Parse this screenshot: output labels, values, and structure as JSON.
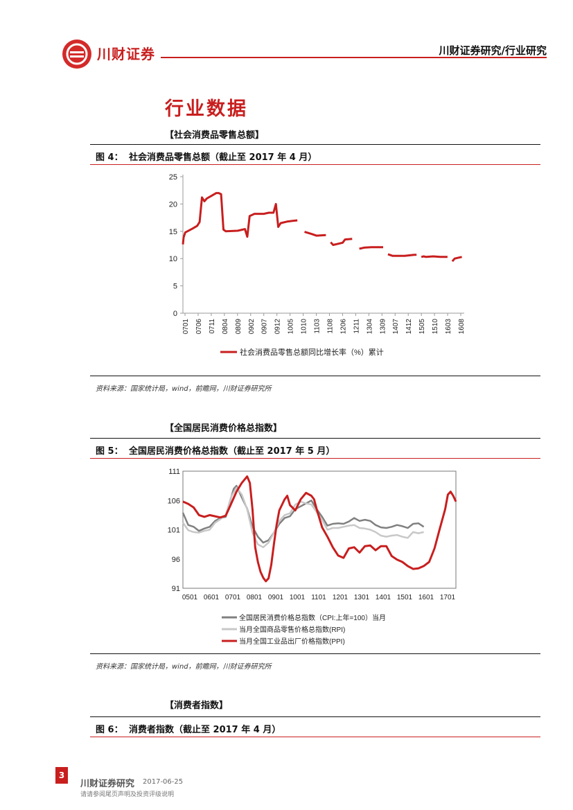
{
  "header": {
    "brand": "川财证券",
    "right_title": "川财证券研究/行业研究"
  },
  "section_title": "行业数据",
  "sections": [
    {
      "subheading": "【社会消费品零售总额】",
      "fig_num": "图 4：",
      "fig_title": "社会消费品零售总额（截止至 2017 年 4 月）",
      "source": "资料来源：国家统计局，wind，前瞻网，川财证券研究所"
    },
    {
      "subheading": "【全国居民消费价格总指数】",
      "fig_num": "图 5：",
      "fig_title": "全国居民消费价格总指数（截止至 2017 年 5 月）",
      "source": "资料来源：国家统计局，wind，前瞻网，川财证券研究所"
    },
    {
      "subheading": "【消费者指数】",
      "fig_num": "图 6：",
      "fig_title": "消费者指数（截止至 2017 年 4 月）"
    }
  ],
  "footer": {
    "page": "3",
    "brand": "川财证券研究",
    "date": "2017-06-25",
    "disclaimer": "请请参阅尾页声明及投资评级说明"
  },
  "chart_data": [
    {
      "type": "line",
      "ylim": [
        0,
        25
      ],
      "yticks": [
        "0",
        "5",
        "10",
        "15",
        "20",
        "25"
      ],
      "xtick_labels": [
        "0701",
        "0706",
        "0711",
        "0804",
        "0809",
        "0902",
        "0907",
        "0912",
        "1005",
        "1010",
        "1103",
        "1108",
        "1206",
        "1211",
        "1304",
        "1309",
        "1407",
        "1412",
        "1505",
        "1510",
        "1603",
        "1608"
      ],
      "series": [
        {
          "name": "社会消费品零售总额同比增长率（%）累计",
          "color": "#c81e1e",
          "segments": [
            [
              [
                0,
                12.6
              ],
              [
                0.3,
                13.9
              ],
              [
                1,
                14.8
              ],
              [
                4,
                15.5
              ],
              [
                6,
                16
              ],
              [
                7,
                16.7
              ],
              [
                8,
                21.2
              ],
              [
                9,
                20.5
              ],
              [
                10,
                21
              ],
              [
                12,
                21.5
              ],
              [
                14,
                22
              ],
              [
                15,
                22
              ],
              [
                16,
                21.8
              ],
              [
                17,
                15.3
              ],
              [
                18,
                15
              ],
              [
                23,
                15.1
              ],
              [
                26,
                15.4
              ],
              [
                27,
                14
              ],
              [
                28,
                17.8
              ],
              [
                29,
                18
              ],
              [
                30,
                18.2
              ],
              [
                34,
                18.2
              ],
              [
                36,
                18.4
              ],
              [
                38,
                18.4
              ],
              [
                39,
                20
              ],
              [
                40,
                15.8
              ],
              [
                41,
                16.5
              ],
              [
                44,
                16.8
              ],
              [
                46,
                16.9
              ],
              [
                48,
                17
              ]
            ],
            [
              [
                51,
                14.9
              ],
              [
                54,
                14.5
              ],
              [
                56,
                14.2
              ],
              [
                60,
                14.3
              ]
            ],
            [
              [
                62,
                13
              ],
              [
                63,
                12.5
              ],
              [
                65,
                12.7
              ],
              [
                67,
                12.9
              ],
              [
                68,
                13.5
              ],
              [
                71,
                13.6
              ]
            ],
            [
              [
                74,
                11.8
              ],
              [
                76,
                12
              ],
              [
                79,
                12.1
              ],
              [
                84,
                12.1
              ]
            ],
            [
              [
                86,
                10.8
              ],
              [
                88,
                10.5
              ],
              [
                93,
                10.5
              ],
              [
                97,
                10.7
              ],
              [
                98,
                10.7
              ]
            ],
            [
              [
                100,
                10.3
              ],
              [
                101,
                10.4
              ],
              [
                102,
                10.3
              ],
              [
                105,
                10.4
              ],
              [
                108,
                10.3
              ],
              [
                111,
                10.3
              ]
            ],
            [
              [
                113,
                9.5
              ],
              [
                114,
                10
              ],
              [
                116,
                10.2
              ],
              [
                117,
                10.3
              ]
            ]
          ]
        }
      ]
    },
    {
      "type": "line",
      "ylim": [
        91,
        111
      ],
      "yticks": [
        "91",
        "96",
        "101",
        "106",
        "111"
      ],
      "xtick_labels": [
        "0501",
        "0601",
        "0701",
        "0801",
        "0901",
        "1001",
        "1101",
        "1201",
        "1301",
        "1401",
        "1501",
        "1601",
        "1701"
      ],
      "series": [
        {
          "name": "全国居民消费价格总指数（CPI:上年=100）当月",
          "color": "#808080",
          "points": [
            [
              0,
              103.9
            ],
            [
              4,
              101.8
            ],
            [
              8,
              101.5
            ],
            [
              12,
              100.8
            ],
            [
              16,
              101.2
            ],
            [
              20,
              101.5
            ],
            [
              24,
              102.5
            ],
            [
              28,
              103
            ],
            [
              32,
              103.2
            ],
            [
              36,
              106.5
            ],
            [
              38,
              108
            ],
            [
              40,
              108.5
            ],
            [
              44,
              106.5
            ],
            [
              48,
              104.6
            ],
            [
              52,
              101.5
            ],
            [
              56,
              99.8
            ],
            [
              60,
              98.8
            ],
            [
              64,
              99.2
            ],
            [
              68,
              100.5
            ],
            [
              72,
              102
            ],
            [
              76,
              103
            ],
            [
              80,
              103.3
            ],
            [
              84,
              104.5
            ],
            [
              88,
              105
            ],
            [
              92,
              105.5
            ],
            [
              96,
              106
            ],
            [
              100,
              104.5
            ],
            [
              104,
              103.2
            ],
            [
              108,
              101.7
            ],
            [
              112,
              102
            ],
            [
              116,
              102.1
            ],
            [
              120,
              102
            ],
            [
              124,
              102.4
            ],
            [
              128,
              103
            ],
            [
              132,
              102.5
            ],
            [
              136,
              102.7
            ],
            [
              140,
              102.5
            ],
            [
              144,
              101.8
            ],
            [
              148,
              101.4
            ],
            [
              152,
              101.3
            ],
            [
              156,
              101.5
            ],
            [
              160,
              101.8
            ],
            [
              164,
              101.6
            ],
            [
              168,
              101.3
            ],
            [
              172,
              102
            ],
            [
              176,
              102.1
            ],
            [
              180,
              101.5
            ]
          ]
        },
        {
          "name": "当月全国商品零售价格总指数(RPI)",
          "color": "#c8c8c8",
          "points": [
            [
              0,
              102.2
            ],
            [
              4,
              100.9
            ],
            [
              8,
              100.6
            ],
            [
              12,
              100.5
            ],
            [
              16,
              100.8
            ],
            [
              20,
              101
            ],
            [
              24,
              102.2
            ],
            [
              28,
              102.8
            ],
            [
              32,
              103.5
            ],
            [
              36,
              106.6
            ],
            [
              40,
              108.2
            ],
            [
              44,
              107
            ],
            [
              48,
              104.5
            ],
            [
              52,
              100.5
            ],
            [
              56,
              98.5
            ],
            [
              60,
              98
            ],
            [
              64,
              98.8
            ],
            [
              68,
              100.5
            ],
            [
              72,
              102.5
            ],
            [
              76,
              103.5
            ],
            [
              80,
              103.8
            ],
            [
              84,
              105.3
            ],
            [
              88,
              105.8
            ],
            [
              92,
              105.5
            ],
            [
              96,
              105.3
            ],
            [
              100,
              104
            ],
            [
              104,
              102.7
            ],
            [
              108,
              101
            ],
            [
              112,
              101.3
            ],
            [
              116,
              101.3
            ],
            [
              120,
              101.5
            ],
            [
              124,
              101.7
            ],
            [
              128,
              101.8
            ],
            [
              132,
              101.3
            ],
            [
              136,
              101.2
            ],
            [
              140,
              101
            ],
            [
              144,
              100.6
            ],
            [
              148,
              100
            ],
            [
              152,
              99.8
            ],
            [
              156,
              100
            ],
            [
              160,
              100.1
            ],
            [
              164,
              99.8
            ],
            [
              168,
              99.6
            ],
            [
              172,
              100.6
            ],
            [
              176,
              100.4
            ],
            [
              180,
              100.6
            ]
          ]
        },
        {
          "name": "当月全国工业品出厂价格指数(PPI)",
          "color": "#c81e1e",
          "points": [
            [
              0,
              105.8
            ],
            [
              4,
              105.4
            ],
            [
              8,
              104.8
            ],
            [
              12,
              103.5
            ],
            [
              16,
              103.2
            ],
            [
              20,
              103.5
            ],
            [
              24,
              103.3
            ],
            [
              28,
              103.1
            ],
            [
              32,
              103.4
            ],
            [
              36,
              105.4
            ],
            [
              40,
              107.5
            ],
            [
              44,
              109
            ],
            [
              48,
              110.1
            ],
            [
              50,
              109
            ],
            [
              52,
              104.5
            ],
            [
              54,
              98
            ],
            [
              56,
              95.5
            ],
            [
              58,
              93.8
            ],
            [
              60,
              92.8
            ],
            [
              62,
              92.2
            ],
            [
              64,
              92.7
            ],
            [
              66,
              95
            ],
            [
              68,
              98.5
            ],
            [
              70,
              101.8
            ],
            [
              72,
              104.3
            ],
            [
              76,
              106.2
            ],
            [
              78,
              106.8
            ],
            [
              80,
              105.2
            ],
            [
              84,
              104.3
            ],
            [
              88,
              106.2
            ],
            [
              92,
              107.3
            ],
            [
              96,
              106.8
            ],
            [
              98,
              106.2
            ],
            [
              100,
              104.5
            ],
            [
              104,
              101.4
            ],
            [
              108,
              99.8
            ],
            [
              112,
              98
            ],
            [
              116,
              96.6
            ],
            [
              120,
              96.2
            ],
            [
              124,
              97.8
            ],
            [
              128,
              98
            ],
            [
              132,
              97.1
            ],
            [
              136,
              98.2
            ],
            [
              140,
              98.3
            ],
            [
              144,
              97.5
            ],
            [
              148,
              98.2
            ],
            [
              152,
              98.2
            ],
            [
              156,
              96.5
            ],
            [
              160,
              95.9
            ],
            [
              164,
              95.5
            ],
            [
              168,
              94.8
            ],
            [
              172,
              94.3
            ],
            [
              176,
              94.4
            ],
            [
              180,
              94.8
            ],
            [
              184,
              95.5
            ],
            [
              188,
              97.8
            ],
            [
              192,
              101.2
            ],
            [
              196,
              104.5
            ],
            [
              198,
              107
            ],
            [
              200,
              107.5
            ],
            [
              202,
              106.8
            ],
            [
              204,
              105.8
            ]
          ]
        }
      ]
    }
  ]
}
